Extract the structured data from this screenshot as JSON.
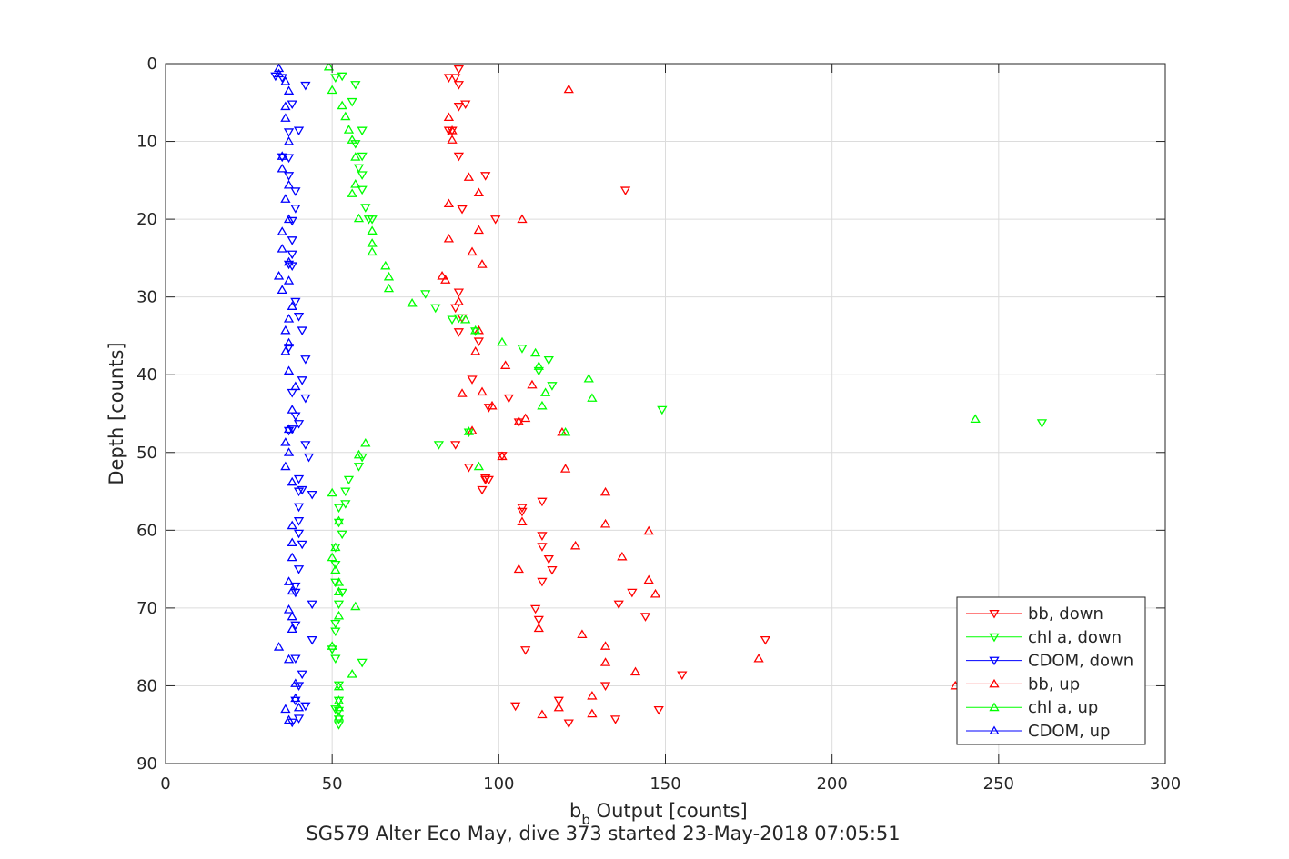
{
  "chart_data": {
    "type": "scatter",
    "title": "",
    "footer": "SG579 Alter Eco May, dive 373 started 23-May-2018 07:05:51",
    "xlabel_main": "b",
    "xlabel_sub": "b",
    "xlabel_rest": " Output [counts]",
    "ylabel": "Depth [counts]",
    "xlim": [
      0,
      300
    ],
    "ylim": [
      0,
      90
    ],
    "y_reversed": true,
    "xticks": [
      0,
      50,
      100,
      150,
      200,
      250,
      300
    ],
    "yticks": [
      0,
      10,
      20,
      30,
      40,
      50,
      60,
      70,
      80,
      90
    ],
    "grid": true,
    "legend_position": "bottom-right",
    "colors": {
      "bb": "#ff0000",
      "chl": "#00ff00",
      "cdom": "#0000ff",
      "axis": "#262626",
      "grid": "#dcdcdc"
    },
    "series": [
      {
        "name": "bb, down",
        "color": "#ff0000",
        "marker": "triangle-down",
        "points": [
          [
            88,
            0.7
          ],
          [
            87,
            1.8
          ],
          [
            85,
            1.8
          ],
          [
            88,
            2.7
          ],
          [
            90,
            5.2
          ],
          [
            88,
            5.5
          ],
          [
            85,
            8.6
          ],
          [
            86,
            8.6
          ],
          [
            88,
            11.9
          ],
          [
            96,
            14.4
          ],
          [
            138,
            16.3
          ],
          [
            89,
            18.7
          ],
          [
            99,
            20.0
          ],
          [
            88,
            29.4
          ],
          [
            87,
            31.4
          ],
          [
            89,
            32.7
          ],
          [
            88,
            34.5
          ],
          [
            94,
            35.7
          ],
          [
            92,
            40.6
          ],
          [
            103,
            43.0
          ],
          [
            97,
            44.2
          ],
          [
            106,
            46.1
          ],
          [
            87,
            49.0
          ],
          [
            101,
            50.4
          ],
          [
            91,
            51.9
          ],
          [
            97,
            53.5
          ],
          [
            96,
            53.5
          ],
          [
            95,
            54.8
          ],
          [
            107,
            57.1
          ],
          [
            107,
            57.6
          ],
          [
            113,
            56.3
          ],
          [
            113,
            60.7
          ],
          [
            113,
            62.1
          ],
          [
            115,
            63.7
          ],
          [
            113,
            66.6
          ],
          [
            111,
            70.1
          ],
          [
            112,
            71.5
          ],
          [
            144,
            71.1
          ],
          [
            108,
            75.4
          ],
          [
            180,
            74.1
          ],
          [
            155,
            78.6
          ],
          [
            118,
            81.9
          ],
          [
            105,
            82.6
          ],
          [
            148,
            83.1
          ],
          [
            121,
            84.8
          ],
          [
            135,
            84.3
          ],
          [
            132,
            80.0
          ],
          [
            136,
            69.5
          ],
          [
            140,
            68.0
          ],
          [
            116,
            65.1
          ],
          [
            96,
            53.3
          ]
        ]
      },
      {
        "name": "chl a, down",
        "color": "#00ff00",
        "marker": "triangle-down",
        "points": [
          [
            53,
            1.6
          ],
          [
            51,
            1.8
          ],
          [
            57,
            2.7
          ],
          [
            56,
            4.9
          ],
          [
            59,
            8.6
          ],
          [
            57,
            10.3
          ],
          [
            59,
            11.9
          ],
          [
            58,
            13.4
          ],
          [
            59,
            14.3
          ],
          [
            59,
            16.2
          ],
          [
            60,
            18.5
          ],
          [
            61,
            20.0
          ],
          [
            62,
            20.0
          ],
          [
            78,
            29.6
          ],
          [
            81,
            31.4
          ],
          [
            88,
            32.7
          ],
          [
            86,
            32.9
          ],
          [
            93,
            34.4
          ],
          [
            107,
            36.6
          ],
          [
            115,
            38.1
          ],
          [
            112,
            39.5
          ],
          [
            116,
            41.4
          ],
          [
            149,
            44.5
          ],
          [
            263,
            46.2
          ],
          [
            91,
            47.4
          ],
          [
            82,
            49.0
          ],
          [
            59,
            50.6
          ],
          [
            58,
            51.8
          ],
          [
            55,
            53.5
          ],
          [
            54,
            55.0
          ],
          [
            54,
            56.6
          ],
          [
            52,
            57.1
          ],
          [
            52,
            59.0
          ],
          [
            53,
            60.5
          ],
          [
            51,
            62.2
          ],
          [
            51,
            64.4
          ],
          [
            51,
            66.7
          ],
          [
            53,
            68.0
          ],
          [
            52,
            69.5
          ],
          [
            51,
            72.0
          ],
          [
            51,
            73.0
          ],
          [
            50,
            75.3
          ],
          [
            51,
            76.5
          ],
          [
            59,
            77.0
          ],
          [
            52,
            79.9
          ],
          [
            52,
            81.9
          ],
          [
            52,
            83.2
          ],
          [
            52,
            84.3
          ],
          [
            51,
            83.0
          ],
          [
            52,
            85.0
          ]
        ]
      },
      {
        "name": "CDOM, down",
        "color": "#0000ff",
        "marker": "triangle-down",
        "points": [
          [
            33,
            1.6
          ],
          [
            35,
            1.8
          ],
          [
            42,
            2.8
          ],
          [
            38,
            5.2
          ],
          [
            37,
            8.8
          ],
          [
            40,
            8.6
          ],
          [
            35,
            12.0
          ],
          [
            37,
            12.1
          ],
          [
            37,
            14.4
          ],
          [
            39,
            16.4
          ],
          [
            39,
            18.6
          ],
          [
            38,
            20.2
          ],
          [
            38,
            22.7
          ],
          [
            38,
            24.5
          ],
          [
            38,
            26.0
          ],
          [
            37,
            25.8
          ],
          [
            39,
            30.6
          ],
          [
            40,
            32.5
          ],
          [
            41,
            34.3
          ],
          [
            37,
            36.5
          ],
          [
            42,
            38.0
          ],
          [
            41,
            40.7
          ],
          [
            38,
            42.3
          ],
          [
            42,
            43.0
          ],
          [
            39,
            45.3
          ],
          [
            40,
            46.3
          ],
          [
            38,
            47.0
          ],
          [
            37,
            47.2
          ],
          [
            42,
            49.0
          ],
          [
            43,
            50.6
          ],
          [
            40,
            53.4
          ],
          [
            41,
            54.8
          ],
          [
            40,
            55.0
          ],
          [
            44,
            55.4
          ],
          [
            40,
            57.0
          ],
          [
            40,
            58.8
          ],
          [
            40,
            60.4
          ],
          [
            41,
            61.8
          ],
          [
            40,
            65.0
          ],
          [
            39,
            67.2
          ],
          [
            39,
            68.0
          ],
          [
            44,
            69.5
          ],
          [
            39,
            72.2
          ],
          [
            44,
            74.1
          ],
          [
            39,
            76.5
          ],
          [
            41,
            78.5
          ],
          [
            40,
            80.0
          ],
          [
            39,
            81.9
          ],
          [
            42,
            82.6
          ],
          [
            40,
            84.2
          ],
          [
            38,
            84.7
          ]
        ]
      },
      {
        "name": "bb, up",
        "color": "#ff0000",
        "marker": "triangle-up",
        "points": [
          [
            121,
            3.3
          ],
          [
            85,
            6.9
          ],
          [
            86,
            8.6
          ],
          [
            86,
            9.8
          ],
          [
            91,
            14.6
          ],
          [
            94,
            16.6
          ],
          [
            85,
            18.0
          ],
          [
            107,
            20.0
          ],
          [
            94,
            21.4
          ],
          [
            85,
            22.5
          ],
          [
            92,
            24.2
          ],
          [
            95,
            25.8
          ],
          [
            83,
            27.3
          ],
          [
            84,
            27.8
          ],
          [
            88,
            30.6
          ],
          [
            94,
            34.3
          ],
          [
            93,
            37.0
          ],
          [
            102,
            38.8
          ],
          [
            110,
            41.3
          ],
          [
            95,
            42.2
          ],
          [
            89,
            42.4
          ],
          [
            98,
            44.0
          ],
          [
            108,
            45.6
          ],
          [
            106,
            46.0
          ],
          [
            119,
            47.4
          ],
          [
            92,
            47.2
          ],
          [
            101,
            50.5
          ],
          [
            120,
            52.1
          ],
          [
            132,
            55.1
          ],
          [
            107,
            58.9
          ],
          [
            132,
            59.2
          ],
          [
            145,
            60.1
          ],
          [
            123,
            62.0
          ],
          [
            137,
            63.4
          ],
          [
            106,
            65.0
          ],
          [
            145,
            66.4
          ],
          [
            147,
            68.2
          ],
          [
            112,
            72.6
          ],
          [
            125,
            73.4
          ],
          [
            132,
            74.9
          ],
          [
            132,
            77.0
          ],
          [
            178,
            76.5
          ],
          [
            141,
            78.2
          ],
          [
            237,
            80.0
          ],
          [
            128,
            81.3
          ],
          [
            118,
            82.8
          ],
          [
            113,
            83.7
          ],
          [
            128,
            83.6
          ]
        ]
      },
      {
        "name": "chl a, up",
        "color": "#00ff00",
        "marker": "triangle-up",
        "points": [
          [
            49,
            0.4
          ],
          [
            50,
            3.4
          ],
          [
            53,
            5.4
          ],
          [
            54,
            6.8
          ],
          [
            55,
            8.5
          ],
          [
            56,
            9.8
          ],
          [
            57,
            12.0
          ],
          [
            57,
            15.5
          ],
          [
            56,
            16.7
          ],
          [
            58,
            19.9
          ],
          [
            62,
            21.5
          ],
          [
            62,
            23.1
          ],
          [
            62,
            24.2
          ],
          [
            66,
            26.0
          ],
          [
            67,
            27.4
          ],
          [
            67,
            28.9
          ],
          [
            74,
            30.8
          ],
          [
            90,
            32.9
          ],
          [
            93,
            34.3
          ],
          [
            101,
            35.8
          ],
          [
            111,
            37.2
          ],
          [
            112,
            38.9
          ],
          [
            127,
            40.5
          ],
          [
            114,
            42.3
          ],
          [
            113,
            44.0
          ],
          [
            128,
            43.0
          ],
          [
            243,
            45.7
          ],
          [
            91,
            47.3
          ],
          [
            120,
            47.4
          ],
          [
            60,
            48.8
          ],
          [
            58,
            50.3
          ],
          [
            94,
            51.8
          ],
          [
            50,
            55.2
          ],
          [
            52,
            58.8
          ],
          [
            51,
            62.2
          ],
          [
            50,
            63.5
          ],
          [
            51,
            65.1
          ],
          [
            52,
            66.7
          ],
          [
            52,
            67.9
          ],
          [
            57,
            69.8
          ],
          [
            52,
            71.0
          ],
          [
            50,
            74.9
          ],
          [
            56,
            78.5
          ],
          [
            52,
            80.1
          ],
          [
            52,
            81.9
          ],
          [
            52,
            82.8
          ],
          [
            52,
            84.0
          ]
        ]
      },
      {
        "name": "CDOM, up",
        "color": "#0000ff",
        "marker": "triangle-up",
        "points": [
          [
            34,
            0.6
          ],
          [
            34,
            1.3
          ],
          [
            36,
            2.3
          ],
          [
            37,
            3.5
          ],
          [
            36,
            5.5
          ],
          [
            36,
            7.0
          ],
          [
            37,
            10.0
          ],
          [
            35,
            11.9
          ],
          [
            35,
            13.5
          ],
          [
            37,
            15.6
          ],
          [
            36,
            17.4
          ],
          [
            37,
            20.0
          ],
          [
            35,
            21.6
          ],
          [
            35,
            23.8
          ],
          [
            37,
            25.5
          ],
          [
            34,
            27.3
          ],
          [
            37,
            27.9
          ],
          [
            35,
            29.1
          ],
          [
            38,
            31.2
          ],
          [
            37,
            32.8
          ],
          [
            36,
            34.3
          ],
          [
            37,
            35.9
          ],
          [
            36,
            37.0
          ],
          [
            37,
            39.5
          ],
          [
            39,
            41.5
          ],
          [
            38,
            44.5
          ],
          [
            37,
            47.0
          ],
          [
            36,
            48.7
          ],
          [
            37,
            50.0
          ],
          [
            36,
            51.8
          ],
          [
            38,
            53.8
          ],
          [
            38,
            59.4
          ],
          [
            38,
            61.6
          ],
          [
            38,
            63.5
          ],
          [
            37,
            66.6
          ],
          [
            38,
            67.8
          ],
          [
            37,
            70.2
          ],
          [
            38,
            71.1
          ],
          [
            38,
            72.7
          ],
          [
            34,
            75.0
          ],
          [
            37,
            76.6
          ],
          [
            39,
            79.7
          ],
          [
            39,
            81.6
          ],
          [
            40,
            82.8
          ],
          [
            36,
            83.0
          ],
          [
            37,
            84.4
          ]
        ]
      }
    ]
  }
}
